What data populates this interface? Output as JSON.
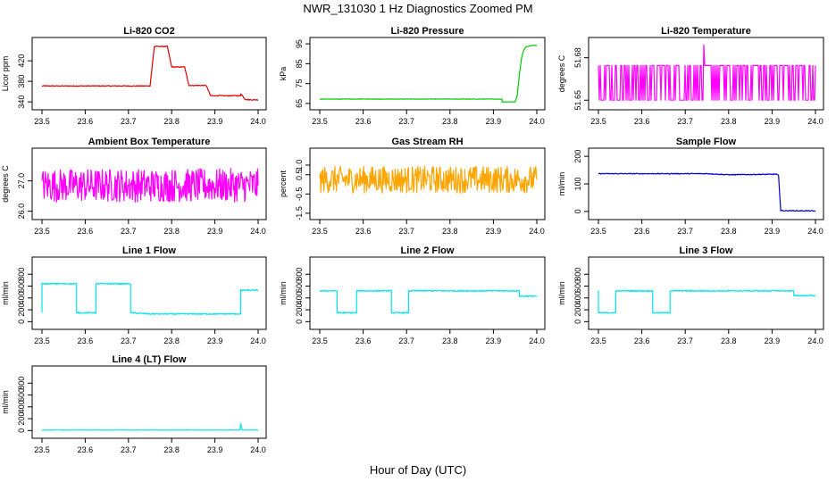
{
  "page": {
    "title": "NWR_131030  1 Hz Diagnostics Zoomed PM",
    "xlabel": "Hour of Day (UTC)"
  },
  "colors": {
    "red": "#e00000",
    "green": "#00cc00",
    "magenta": "#ff00ff",
    "orange": "#ffa500",
    "blue": "#0000cc",
    "cyan": "#00e5ee"
  },
  "chart_data": [
    {
      "type": "line",
      "title": "Li-820 CO2",
      "ylabel": "Licor ppm",
      "color": "#e00000",
      "xlim": [
        23.5,
        24.0
      ],
      "ylim": [
        335,
        455
      ],
      "xticks": [
        "23.5",
        "23.6",
        "23.7",
        "23.8",
        "23.9",
        "24.0"
      ],
      "yticks": [
        {
          "v": 340,
          "t": "340"
        },
        {
          "v": 380,
          "t": "380"
        },
        {
          "v": 420,
          "t": "420"
        }
      ],
      "noise": 0.8,
      "series": [
        {
          "x": [
            23.5,
            23.75,
            23.76,
            23.79,
            23.8,
            23.83,
            23.84,
            23.88,
            23.89,
            23.96,
            23.96,
            23.97,
            23.98,
            24.0
          ],
          "y": [
            371,
            371,
            448,
            448,
            408,
            408,
            372,
            372,
            352,
            352,
            356,
            345,
            344,
            344
          ]
        }
      ]
    },
    {
      "type": "line",
      "title": "Li-820 Pressure",
      "ylabel": "kPa",
      "color": "#00cc00",
      "xlim": [
        23.5,
        24.0
      ],
      "ylim": [
        64.5,
        95.5
      ],
      "xticks": [
        "23.5",
        "23.6",
        "23.7",
        "23.8",
        "23.9",
        "24.0"
      ],
      "yticks": [
        {
          "v": 65,
          "t": "65"
        },
        {
          "v": 75,
          "t": "75"
        },
        {
          "v": 85,
          "t": "85"
        },
        {
          "v": 95,
          "t": "95"
        }
      ],
      "noise": 0.1,
      "series": [
        {
          "x": [
            23.5,
            23.92,
            23.92,
            23.95,
            23.955,
            23.96,
            23.965,
            23.97,
            23.975,
            23.99,
            24.0
          ],
          "y": [
            67.2,
            67.2,
            65.8,
            65.8,
            69,
            80,
            88,
            92,
            93.5,
            94.2,
            94.3
          ]
        }
      ]
    },
    {
      "type": "line",
      "title": "Li-820 Temperature",
      "ylabel": "degrees C",
      "color": "#ff00ff",
      "xlim": [
        23.5,
        24.0
      ],
      "ylim": [
        51.647,
        51.6905
      ],
      "xticks": [
        "23.5",
        "23.6",
        "23.7",
        "23.8",
        "23.9",
        "24.0"
      ],
      "yticks": [
        {
          "v": 51.65,
          "t": "51.65"
        },
        {
          "v": 51.68,
          "t": "51.68"
        }
      ],
      "noise": 0,
      "flicker": {
        "low": 51.65,
        "high": 51.6745,
        "spike": 51.689
      },
      "series": [
        {
          "x": [
            23.5,
            24.0
          ],
          "y": [
            51.6745,
            51.6745
          ]
        }
      ]
    },
    {
      "type": "line",
      "title": "Ambient Box Temperature",
      "ylabel": "degrees C",
      "color": "#ff00ff",
      "xlim": [
        23.5,
        24.0
      ],
      "ylim": [
        25.9,
        27.9
      ],
      "xticks": [
        "23.5",
        "23.6",
        "23.7",
        "23.8",
        "23.9",
        "24.0"
      ],
      "yticks": [
        {
          "v": 26,
          "t": "26.0"
        },
        {
          "v": 27,
          "t": "27.0"
        }
      ],
      "noise": 0.55,
      "series": [
        {
          "x": [
            23.5,
            24.0
          ],
          "y": [
            26.85,
            26.85
          ]
        }
      ]
    },
    {
      "type": "line",
      "title": "Gas Stream RH",
      "ylabel": "percent",
      "color": "#ffa500",
      "xlim": [
        23.5,
        24.0
      ],
      "ylim": [
        -1.55,
        1.6
      ],
      "xticks": [
        "23.5",
        "23.6",
        "23.7",
        "23.8",
        "23.9",
        "24.0"
      ],
      "yticks": [
        {
          "v": -1.5,
          "t": "-1.5"
        },
        {
          "v": -0.5,
          "t": "-0.5"
        },
        {
          "v": 0.5,
          "t": "0.5"
        },
        {
          "v": 1,
          "t": "1.0"
        }
      ],
      "noise": 0.7,
      "series": [
        {
          "x": [
            23.5,
            24.0
          ],
          "y": [
            0.25,
            0.25
          ]
        }
      ]
    },
    {
      "type": "line",
      "title": "Sample Flow",
      "ylabel": "ml/min",
      "color": "#0000cc",
      "xlim": [
        23.5,
        24.0
      ],
      "ylim": [
        -10,
        210
      ],
      "xticks": [
        "23.5",
        "23.6",
        "23.7",
        "23.8",
        "23.9",
        "24.0"
      ],
      "yticks": [
        {
          "v": 0,
          "t": "0"
        },
        {
          "v": 100,
          "t": "100"
        },
        {
          "v": 200,
          "t": "200"
        }
      ],
      "noise": 1.5,
      "series": [
        {
          "x": [
            23.5,
            23.75,
            23.8,
            23.91,
            23.915,
            23.92,
            24.0
          ],
          "y": [
            137,
            137,
            133,
            135,
            130,
            3,
            2
          ]
        }
      ]
    },
    {
      "type": "line",
      "title": "Line 1 Flow",
      "ylabel": "ml/min",
      "color": "#00e5ee",
      "xlim": [
        23.5,
        24.0
      ],
      "ylim": [
        -40,
        1000
      ],
      "xticks": [
        "23.5",
        "23.6",
        "23.7",
        "23.8",
        "23.9",
        "24.0"
      ],
      "yticks": [
        {
          "v": 0,
          "t": "0"
        },
        {
          "v": 200,
          "t": "200"
        },
        {
          "v": 400,
          "t": "400"
        },
        {
          "v": 600,
          "t": "600"
        },
        {
          "v": 800,
          "t": "800"
        }
      ],
      "noise": 10,
      "series": [
        {
          "x": [
            23.5,
            23.5,
            23.58,
            23.58,
            23.625,
            23.625,
            23.705,
            23.705,
            23.75,
            23.96,
            23.96,
            24.0
          ],
          "y": [
            150,
            640,
            640,
            150,
            150,
            640,
            640,
            150,
            130,
            130,
            530,
            530
          ]
        }
      ]
    },
    {
      "type": "line",
      "title": "Line 2 Flow",
      "ylabel": "ml/min",
      "color": "#00e5ee",
      "xlim": [
        23.5,
        24.0
      ],
      "ylim": [
        -40,
        1000
      ],
      "xticks": [
        "23.5",
        "23.6",
        "23.7",
        "23.8",
        "23.9",
        "24.0"
      ],
      "yticks": [
        {
          "v": 0,
          "t": "0"
        },
        {
          "v": 200,
          "t": "200"
        },
        {
          "v": 400,
          "t": "400"
        },
        {
          "v": 600,
          "t": "600"
        },
        {
          "v": 800,
          "t": "800"
        }
      ],
      "noise": 10,
      "series": [
        {
          "x": [
            23.5,
            23.54,
            23.54,
            23.585,
            23.585,
            23.665,
            23.665,
            23.705,
            23.705,
            23.96,
            23.96,
            24.0
          ],
          "y": [
            520,
            520,
            150,
            150,
            520,
            520,
            150,
            150,
            520,
            520,
            430,
            430
          ]
        }
      ]
    },
    {
      "type": "line",
      "title": "Line 3 Flow",
      "ylabel": "ml/min",
      "color": "#00e5ee",
      "xlim": [
        23.5,
        24.0
      ],
      "ylim": [
        -40,
        1000
      ],
      "xticks": [
        "23.5",
        "23.6",
        "23.7",
        "23.8",
        "23.9",
        "24.0"
      ],
      "yticks": [
        {
          "v": 0,
          "t": "0"
        },
        {
          "v": 200,
          "t": "200"
        },
        {
          "v": 400,
          "t": "400"
        },
        {
          "v": 600,
          "t": "600"
        },
        {
          "v": 800,
          "t": "800"
        }
      ],
      "noise": 10,
      "series": [
        {
          "x": [
            23.5,
            23.5,
            23.54,
            23.54,
            23.625,
            23.625,
            23.665,
            23.665,
            23.95,
            23.95,
            24.0
          ],
          "y": [
            520,
            150,
            150,
            520,
            520,
            150,
            150,
            520,
            520,
            440,
            440
          ]
        }
      ]
    },
    {
      "type": "line",
      "title": "Line 4 (LT) Flow",
      "ylabel": "ml/min",
      "color": "#00e5ee",
      "xlim": [
        23.5,
        24.0
      ],
      "ylim": [
        -40,
        1000
      ],
      "xticks": [
        "23.5",
        "23.6",
        "23.7",
        "23.8",
        "23.9",
        "24.0"
      ],
      "yticks": [
        {
          "v": 0,
          "t": "0"
        },
        {
          "v": 200,
          "t": "200"
        },
        {
          "v": 400,
          "t": "400"
        },
        {
          "v": 600,
          "t": "600"
        },
        {
          "v": 800,
          "t": "800"
        }
      ],
      "noise": 2,
      "series": [
        {
          "x": [
            23.5,
            23.958,
            23.96,
            23.962,
            23.964,
            24.0
          ],
          "y": [
            8,
            8,
            120,
            30,
            8,
            8
          ]
        }
      ]
    }
  ]
}
